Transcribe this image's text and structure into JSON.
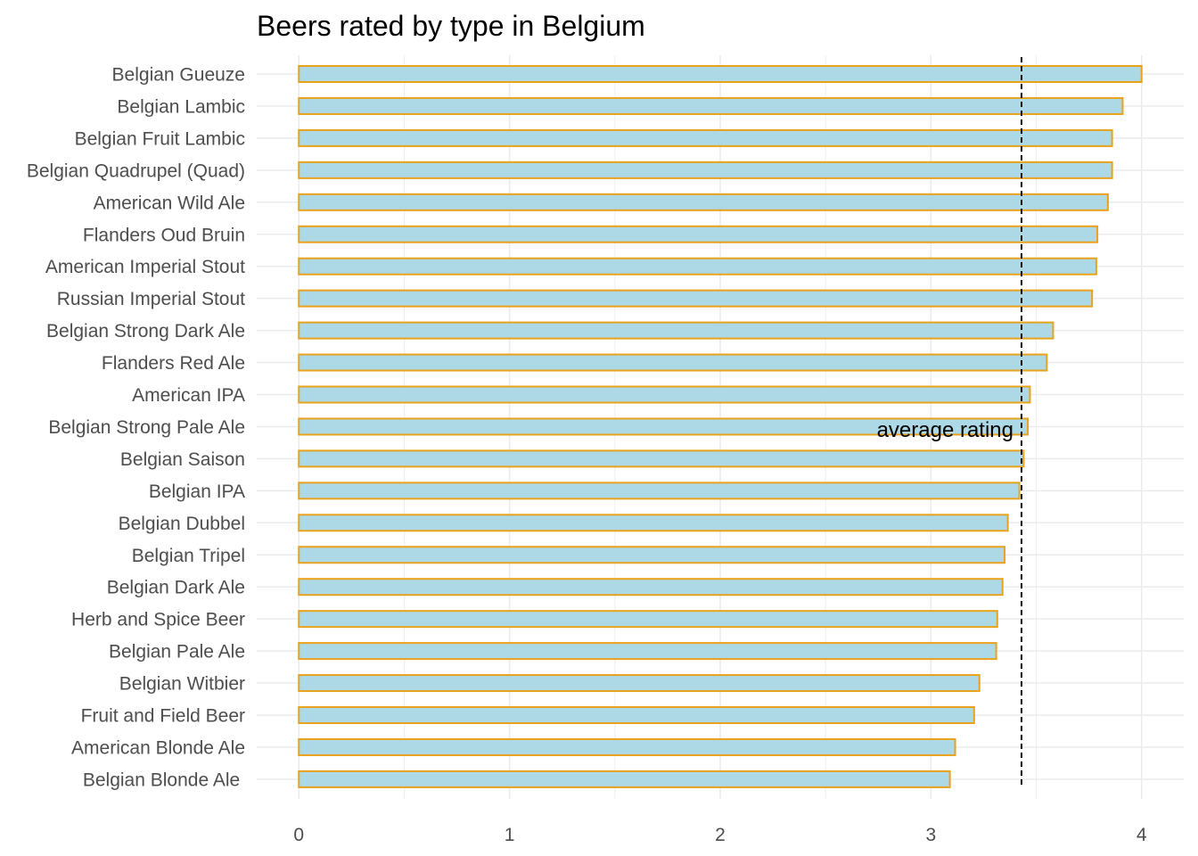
{
  "chart_data": {
    "type": "bar",
    "orientation": "horizontal",
    "title": "Beers rated by type in Belgium",
    "xlabel": "",
    "ylabel": "",
    "categories": [
      "Belgian Gueuze",
      "Belgian Lambic",
      "Belgian Fruit Lambic",
      "Belgian Quadrupel (Quad)",
      "American Wild Ale",
      "Flanders Oud Bruin",
      "American Imperial Stout",
      "Russian Imperial Stout",
      "Belgian Strong Dark Ale",
      "Flanders Red Ale",
      "American IPA",
      "Belgian Strong Pale Ale",
      "Belgian Saison",
      "Belgian IPA",
      "Belgian Dubbel",
      "Belgian Tripel",
      "Belgian Dark Ale",
      "Herb and Spice Beer",
      "Belgian Pale Ale",
      "Belgian Witbier",
      "Fruit and Field Beer",
      "American Blonde Ale",
      "Belgian Blonde Ale "
    ],
    "values": [
      4.0,
      3.91,
      3.86,
      3.86,
      3.84,
      3.79,
      3.785,
      3.765,
      3.58,
      3.55,
      3.47,
      3.46,
      3.44,
      3.42,
      3.365,
      3.35,
      3.34,
      3.315,
      3.31,
      3.23,
      3.205,
      3.115,
      3.09
    ],
    "xlim": [
      -0.2,
      4.2
    ],
    "x_ticks": [
      0,
      1,
      2,
      3,
      4
    ],
    "x_tick_labels": [
      "0",
      "1",
      "2",
      "3",
      "4"
    ],
    "grid": true,
    "legend": "none",
    "colors": {
      "bar_fill": "#add8e6",
      "bar_outline": "#e9a21b",
      "grid": "#ebebeb",
      "reference_line": "#000000"
    },
    "reference_line": {
      "value": 3.43,
      "style": "dashed",
      "label": "average rating"
    }
  }
}
